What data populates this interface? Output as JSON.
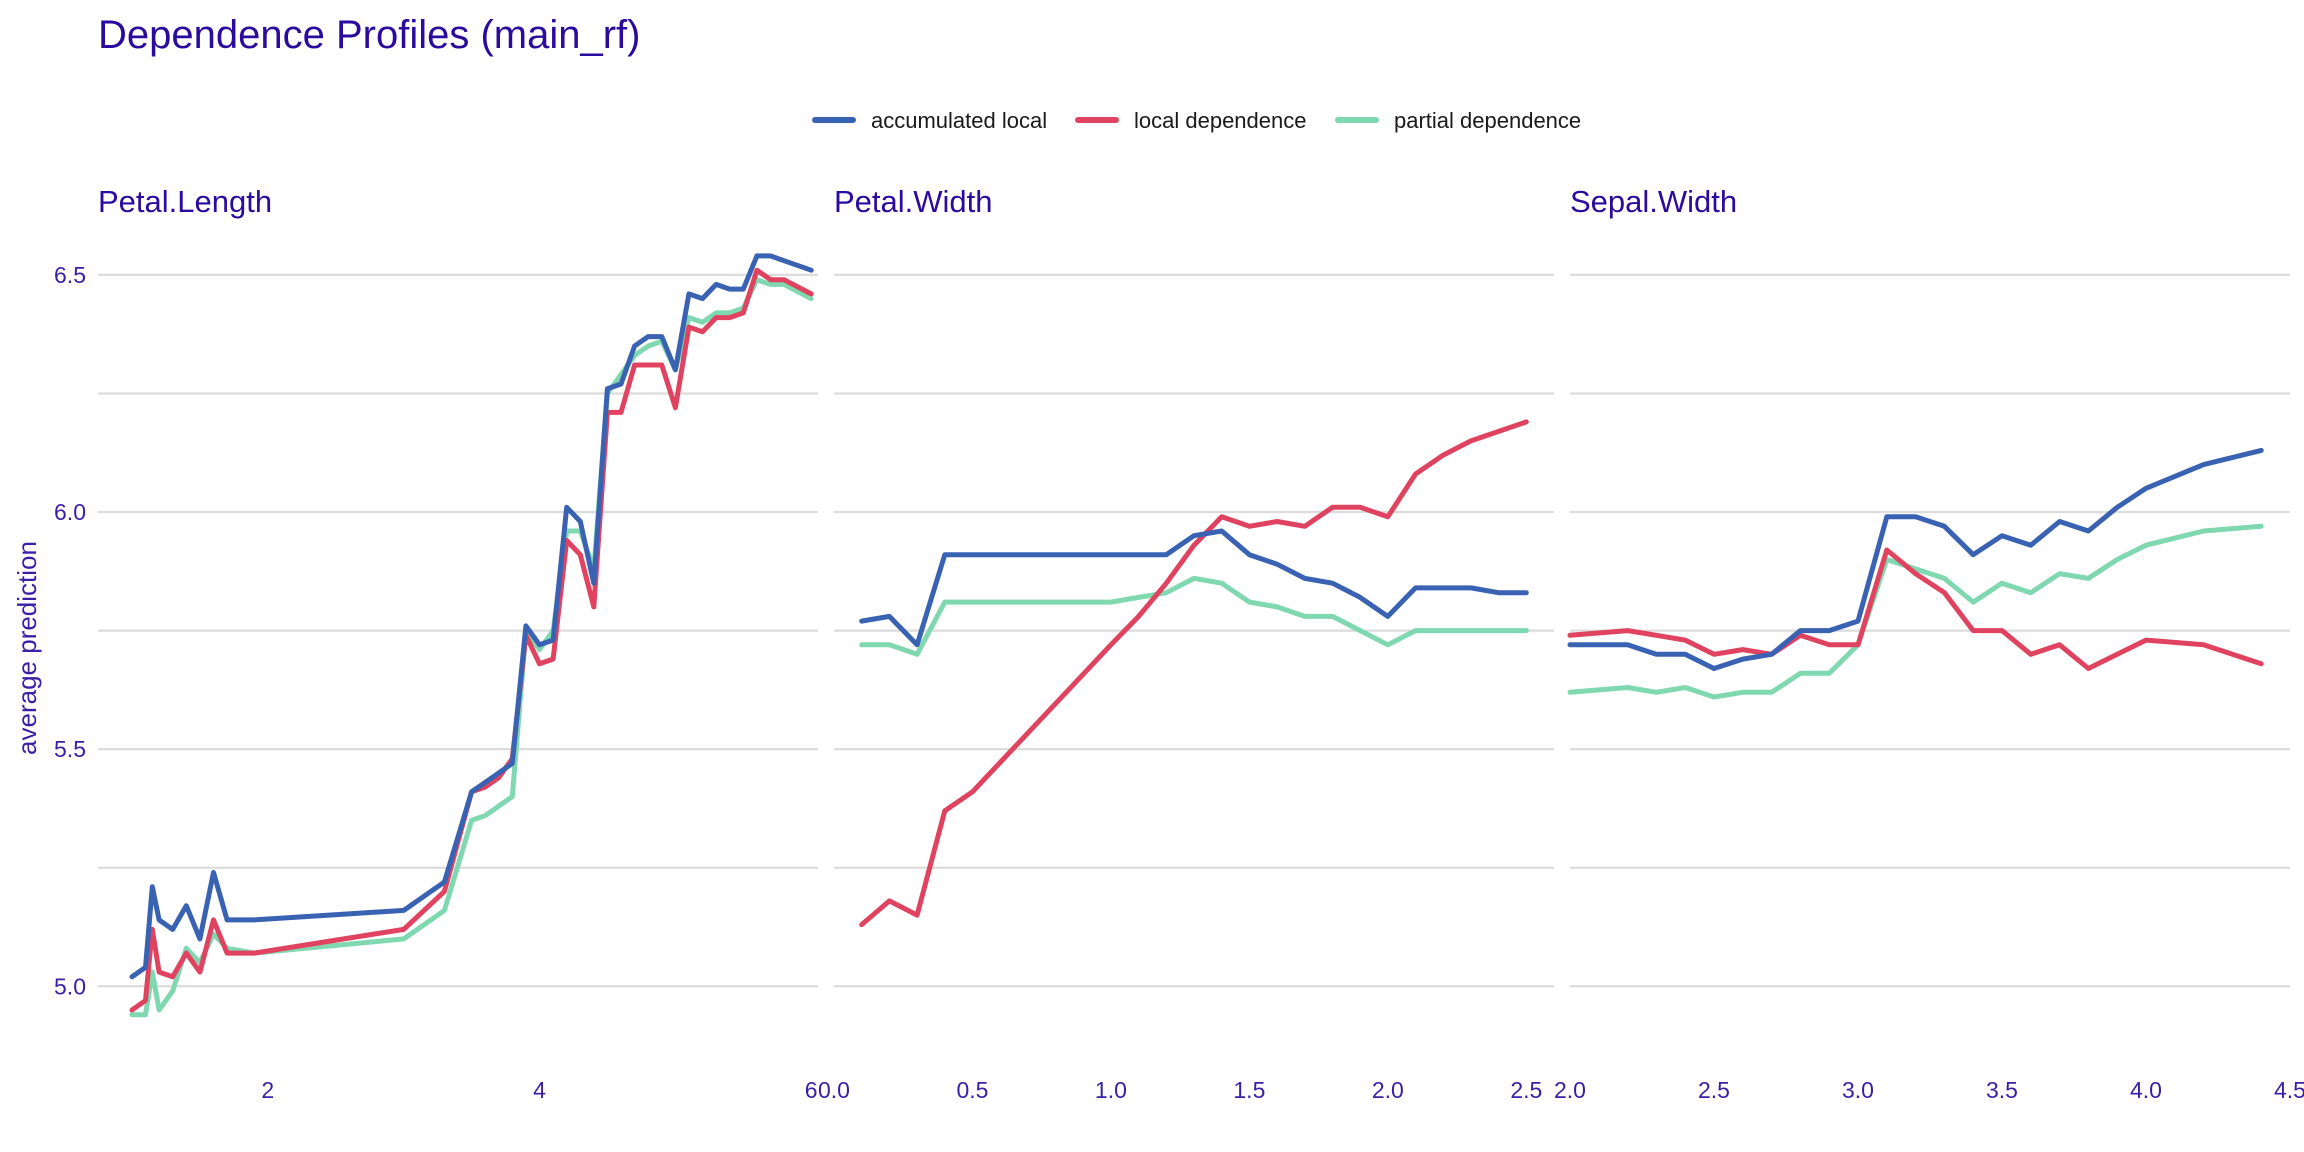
{
  "chart_data": {
    "type": "line",
    "title": "Dependence Profiles (main_rf)",
    "ylabel": "average prediction",
    "ylim": [
      4.95,
      6.62
    ],
    "yticks": [
      5.0,
      5.5,
      6.0,
      6.5
    ],
    "legend_position": "top",
    "grid": true,
    "series_names": [
      "accumulated local",
      "local dependence",
      "partial dependence"
    ],
    "colors": {
      "accumulated local": "#3a62b3",
      "local dependence": "#e0435f",
      "partial dependence": "#7fd8b0"
    },
    "panels": [
      {
        "name": "Petal.Length",
        "xlim": [
          0.75,
          6.05
        ],
        "xticks": [
          "2",
          "4",
          "6"
        ],
        "xtick_values": [
          2,
          4,
          6
        ],
        "series": [
          {
            "name": "accumulated local",
            "x": [
              1.0,
              1.1,
              1.15,
              1.2,
              1.3,
              1.4,
              1.5,
              1.6,
              1.7,
              1.9,
              3.0,
              3.3,
              3.5,
              3.6,
              3.7,
              3.8,
              3.9,
              4.0,
              4.1,
              4.2,
              4.3,
              4.4,
              4.5,
              4.6,
              4.7,
              4.8,
              4.9,
              5.0,
              5.1,
              5.2,
              5.3,
              5.4,
              5.5,
              5.6,
              5.7,
              5.8,
              6.0
            ],
            "y": [
              5.02,
              5.04,
              5.21,
              5.14,
              5.12,
              5.17,
              5.1,
              5.24,
              5.14,
              5.14,
              5.16,
              5.22,
              5.41,
              5.43,
              5.45,
              5.47,
              5.76,
              5.72,
              5.73,
              6.01,
              5.98,
              5.85,
              6.26,
              6.27,
              6.35,
              6.37,
              6.37,
              6.3,
              6.46,
              6.45,
              6.48,
              6.47,
              6.47,
              6.54,
              6.54,
              6.53,
              6.51
            ]
          },
          {
            "name": "local dependence",
            "x": [
              1.0,
              1.1,
              1.15,
              1.2,
              1.3,
              1.4,
              1.5,
              1.6,
              1.7,
              1.9,
              3.0,
              3.3,
              3.5,
              3.6,
              3.7,
              3.8,
              3.9,
              4.0,
              4.1,
              4.2,
              4.3,
              4.4,
              4.5,
              4.6,
              4.7,
              4.8,
              4.9,
              5.0,
              5.1,
              5.2,
              5.3,
              5.4,
              5.5,
              5.6,
              5.7,
              5.8,
              6.0
            ],
            "y": [
              4.95,
              4.97,
              5.12,
              5.03,
              5.02,
              5.07,
              5.03,
              5.14,
              5.07,
              5.07,
              5.12,
              5.2,
              5.41,
              5.42,
              5.44,
              5.48,
              5.74,
              5.68,
              5.69,
              5.94,
              5.91,
              5.8,
              6.21,
              6.21,
              6.31,
              6.31,
              6.31,
              6.22,
              6.39,
              6.38,
              6.41,
              6.41,
              6.42,
              6.51,
              6.49,
              6.49,
              6.46
            ]
          },
          {
            "name": "partial dependence",
            "x": [
              1.0,
              1.1,
              1.15,
              1.2,
              1.3,
              1.4,
              1.5,
              1.6,
              1.7,
              1.9,
              3.0,
              3.3,
              3.5,
              3.6,
              3.7,
              3.8,
              3.9,
              4.0,
              4.1,
              4.2,
              4.3,
              4.4,
              4.5,
              4.6,
              4.7,
              4.8,
              4.9,
              5.0,
              5.1,
              5.2,
              5.3,
              5.4,
              5.5,
              5.6,
              5.7,
              5.8,
              6.0
            ],
            "y": [
              4.94,
              4.94,
              5.03,
              4.95,
              4.99,
              5.08,
              5.05,
              5.11,
              5.08,
              5.07,
              5.1,
              5.16,
              5.35,
              5.36,
              5.38,
              5.4,
              5.75,
              5.71,
              5.75,
              5.96,
              5.96,
              5.88,
              6.25,
              6.29,
              6.33,
              6.35,
              6.36,
              6.3,
              6.41,
              6.4,
              6.42,
              6.42,
              6.43,
              6.49,
              6.48,
              6.48,
              6.45
            ]
          }
        ]
      },
      {
        "name": "Petal.Width",
        "xlim": [
          0.0,
          2.6
        ],
        "xticks": [
          "0.0",
          "0.5",
          "1.0",
          "1.5",
          "2.0",
          "2.5"
        ],
        "xtick_values": [
          0.0,
          0.5,
          1.0,
          1.5,
          2.0,
          2.5
        ],
        "series": [
          {
            "name": "accumulated local",
            "x": [
              0.1,
              0.2,
              0.3,
              0.4,
              0.5,
              1.0,
              1.1,
              1.2,
              1.3,
              1.4,
              1.5,
              1.6,
              1.7,
              1.8,
              1.9,
              2.0,
              2.1,
              2.2,
              2.3,
              2.4,
              2.5
            ],
            "y": [
              5.77,
              5.78,
              5.72,
              5.91,
              5.91,
              5.91,
              5.91,
              5.91,
              5.95,
              5.96,
              5.91,
              5.89,
              5.86,
              5.85,
              5.82,
              5.78,
              5.84,
              5.84,
              5.84,
              5.83,
              5.83
            ]
          },
          {
            "name": "local dependence",
            "x": [
              0.1,
              0.2,
              0.3,
              0.4,
              0.5,
              1.0,
              1.1,
              1.2,
              1.3,
              1.4,
              1.5,
              1.6,
              1.7,
              1.8,
              1.9,
              2.0,
              2.1,
              2.2,
              2.3,
              2.4,
              2.5
            ],
            "y": [
              5.13,
              5.18,
              5.15,
              5.37,
              5.41,
              5.72,
              5.78,
              5.85,
              5.93,
              5.99,
              5.97,
              5.98,
              5.97,
              6.01,
              6.01,
              5.99,
              6.08,
              6.12,
              6.15,
              6.17,
              6.19
            ]
          },
          {
            "name": "partial dependence",
            "x": [
              0.1,
              0.2,
              0.3,
              0.4,
              0.5,
              1.0,
              1.1,
              1.2,
              1.3,
              1.4,
              1.5,
              1.6,
              1.7,
              1.8,
              1.9,
              2.0,
              2.1,
              2.2,
              2.3,
              2.4,
              2.5
            ],
            "y": [
              5.72,
              5.72,
              5.7,
              5.81,
              5.81,
              5.81,
              5.82,
              5.83,
              5.86,
              5.85,
              5.81,
              5.8,
              5.78,
              5.78,
              5.75,
              5.72,
              5.75,
              5.75,
              5.75,
              5.75,
              5.75
            ]
          }
        ]
      },
      {
        "name": "Sepal.Width",
        "xlim": [
          2.0,
          4.5
        ],
        "xticks": [
          "2.0",
          "2.5",
          "3.0",
          "3.5",
          "4.0",
          "4.5"
        ],
        "xtick_values": [
          2.0,
          2.5,
          3.0,
          3.5,
          4.0,
          4.5
        ],
        "series": [
          {
            "name": "accumulated local",
            "x": [
              2.0,
              2.2,
              2.3,
              2.4,
              2.5,
              2.6,
              2.7,
              2.8,
              2.9,
              3.0,
              3.1,
              3.2,
              3.3,
              3.4,
              3.5,
              3.6,
              3.7,
              3.8,
              3.9,
              4.0,
              4.2,
              4.4
            ],
            "y": [
              5.72,
              5.72,
              5.7,
              5.7,
              5.67,
              5.69,
              5.7,
              5.75,
              5.75,
              5.77,
              5.99,
              5.99,
              5.97,
              5.91,
              5.95,
              5.93,
              5.98,
              5.96,
              6.01,
              6.05,
              6.1,
              6.13
            ]
          },
          {
            "name": "local dependence",
            "x": [
              2.0,
              2.2,
              2.3,
              2.4,
              2.5,
              2.6,
              2.7,
              2.8,
              2.9,
              3.0,
              3.1,
              3.2,
              3.3,
              3.4,
              3.5,
              3.6,
              3.7,
              3.8,
              3.9,
              4.0,
              4.2,
              4.4
            ],
            "y": [
              5.74,
              5.75,
              5.74,
              5.73,
              5.7,
              5.71,
              5.7,
              5.74,
              5.72,
              5.72,
              5.92,
              5.87,
              5.83,
              5.75,
              5.75,
              5.7,
              5.72,
              5.67,
              5.7,
              5.73,
              5.72,
              5.68
            ]
          },
          {
            "name": "partial dependence",
            "x": [
              2.0,
              2.2,
              2.3,
              2.4,
              2.5,
              2.6,
              2.7,
              2.8,
              2.9,
              3.0,
              3.1,
              3.2,
              3.3,
              3.4,
              3.5,
              3.6,
              3.7,
              3.8,
              3.9,
              4.0,
              4.2,
              4.4
            ],
            "y": [
              5.62,
              5.63,
              5.62,
              5.63,
              5.61,
              5.62,
              5.62,
              5.66,
              5.66,
              5.72,
              5.9,
              5.88,
              5.86,
              5.81,
              5.85,
              5.83,
              5.87,
              5.86,
              5.9,
              5.93,
              5.96,
              5.97
            ]
          }
        ]
      }
    ]
  }
}
